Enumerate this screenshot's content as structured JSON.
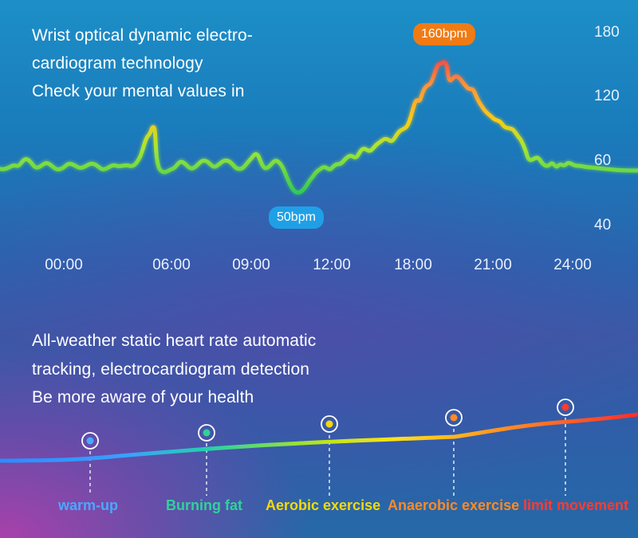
{
  "top_text": {
    "line1": "Wrist optical dynamic electro-",
    "line2": "cardiogram technology",
    "line3": "Check your mental values in"
  },
  "bottom_text": {
    "line1": "All-weather static heart rate automatic",
    "line2": "tracking, electrocardiogram detection",
    "line3": "Be more aware of your health"
  },
  "chart_data": {
    "type": "line",
    "y_ticks": [
      "180",
      "120",
      "60",
      "40"
    ],
    "x_ticks": [
      "00:00",
      "06:00",
      "09:00",
      "12:00",
      "18:00",
      "21:00",
      "24:00"
    ],
    "peak_label": "160bpm",
    "low_label": "50bpm",
    "gradient_colors": [
      "#22c55e",
      "#84cc16",
      "#facc15",
      "#fb923c",
      "#ef4444"
    ]
  },
  "zones": [
    {
      "label": "warm-up",
      "color": "#4aa8ff"
    },
    {
      "label": "Burning fat",
      "color": "#2fd39a"
    },
    {
      "label": "Aerobic exercise",
      "color": "#f5d90a"
    },
    {
      "label": "Anaerobic exercise",
      "color": "#ff8a24"
    },
    {
      "label": "limit movement",
      "color": "#ff3b2f"
    }
  ]
}
